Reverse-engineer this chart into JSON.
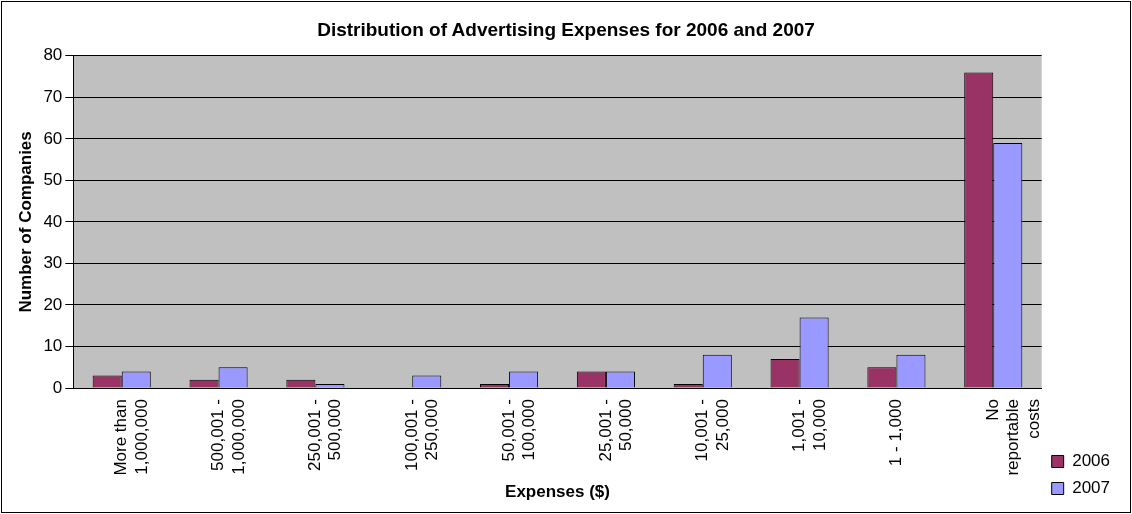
{
  "chart_data": {
    "type": "bar",
    "title": "Distribution of Advertising Expenses for 2006 and 2007",
    "xlabel": "Expenses ($)",
    "ylabel": "Number of Companies",
    "categories": [
      "More than 1,000,000",
      "500,001 - 1,000,000",
      "250,001 - 500,000",
      "100,001 - 250,000",
      "50,001 - 100,000",
      "25,001 - 50,000",
      "10,001 - 25,000",
      "1,001 - 10,000",
      "1 - 1,000",
      "No reportable costs"
    ],
    "series": [
      {
        "name": "2006",
        "color": "#993366",
        "values": [
          3,
          2,
          2,
          0,
          1,
          4,
          1,
          7,
          5,
          76
        ]
      },
      {
        "name": "2007",
        "color": "#9999ff",
        "values": [
          4,
          5,
          1,
          3,
          4,
          4,
          8,
          17,
          8,
          59
        ]
      }
    ],
    "ylim": [
      0,
      80
    ],
    "yticks": [
      0,
      10,
      20,
      30,
      40,
      50,
      60,
      70,
      80
    ],
    "grid": "y",
    "legend": "bottom right"
  }
}
